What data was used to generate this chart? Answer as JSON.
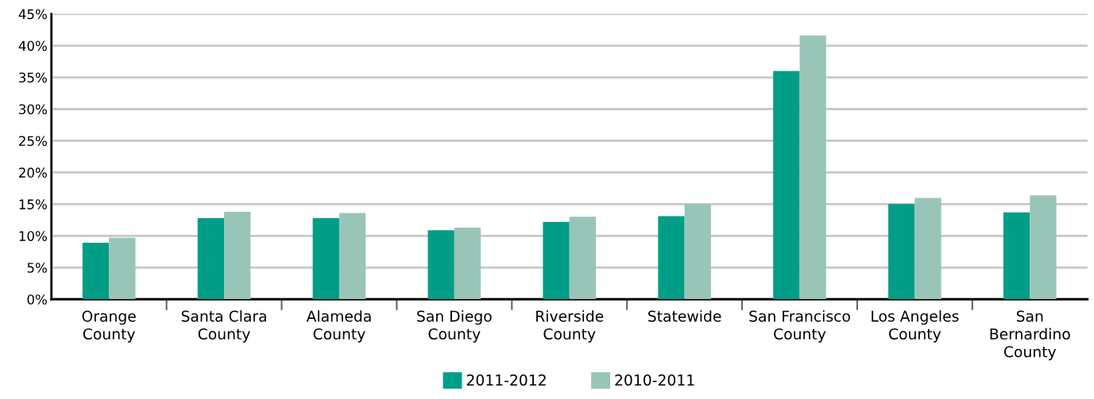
{
  "chart_data": {
    "type": "bar",
    "categories": [
      "Orange\nCounty",
      "Santa Clara\nCounty",
      "Alameda\nCounty",
      "San Diego\nCounty",
      "Riverside\nCounty",
      "Statewide",
      "San Francisco\nCounty",
      "Los Angeles\nCounty",
      "San\nBernardino\nCounty"
    ],
    "series": [
      {
        "name": "2011-2012",
        "color": "#009e87",
        "values": [
          8.9,
          12.8,
          12.8,
          10.9,
          12.2,
          13.1,
          36.0,
          15.0,
          13.7
        ]
      },
      {
        "name": "2010-2011",
        "color": "#99c5b8",
        "values": [
          9.7,
          13.8,
          13.6,
          11.3,
          13.0,
          15.0,
          41.6,
          16.0,
          16.4
        ]
      }
    ],
    "ylim": [
      0,
      45
    ],
    "yticks": [
      {
        "value": 0,
        "label": "0%"
      },
      {
        "value": 5,
        "label": "5%"
      },
      {
        "value": 10,
        "label": "10%"
      },
      {
        "value": 15,
        "label": "15%"
      },
      {
        "value": 20,
        "label": "20%"
      },
      {
        "value": 25,
        "label": "25%"
      },
      {
        "value": 30,
        "label": "30%"
      },
      {
        "value": 35,
        "label": "35%"
      },
      {
        "value": 40,
        "label": "40%"
      },
      {
        "value": 45,
        "label": "45%"
      }
    ],
    "grid": "y",
    "legend": "bottom"
  }
}
